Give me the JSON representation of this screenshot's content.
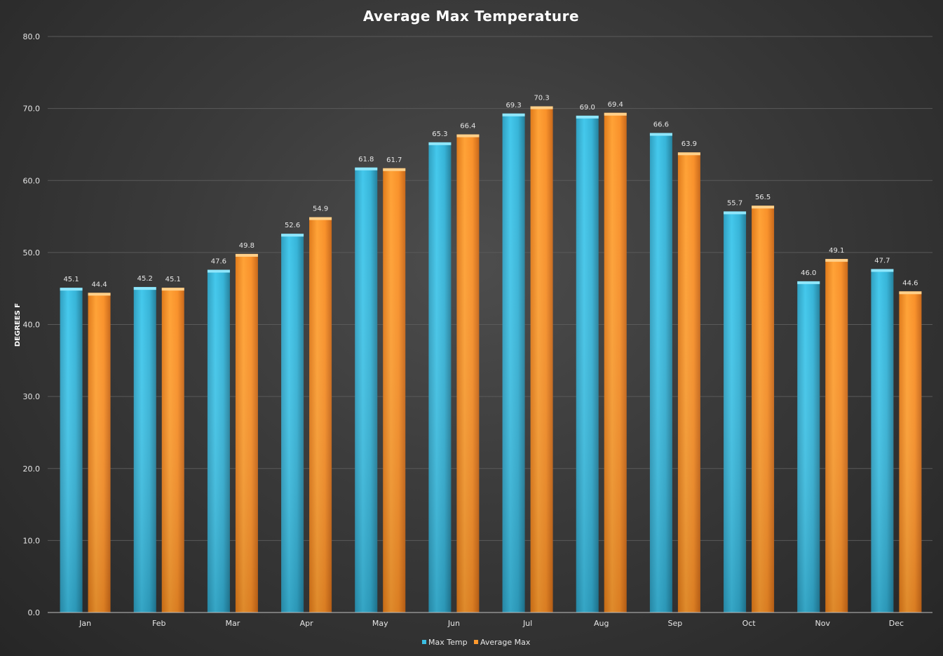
{
  "chart_data": {
    "type": "bar",
    "title": "Average Max Temperature",
    "xlabel": "",
    "ylabel": "DEGREES F",
    "ylim": [
      0,
      80
    ],
    "yticks": [
      "0.0",
      "10.0",
      "20.0",
      "30.0",
      "40.0",
      "50.0",
      "60.0",
      "70.0",
      "80.0"
    ],
    "grid": true,
    "legend": "bottom-center",
    "categories": [
      "Jan",
      "Feb",
      "Mar",
      "Apr",
      "May",
      "Jun",
      "Jul",
      "Aug",
      "Sep",
      "Oct",
      "Nov",
      "Dec"
    ],
    "series": [
      {
        "name": "Max Temp",
        "color": "#3bbfe3",
        "values": [
          45.1,
          45.2,
          47.6,
          52.6,
          61.8,
          65.3,
          69.3,
          69.0,
          66.6,
          55.7,
          46.0,
          47.7
        ],
        "labels": [
          "45.1",
          "45.2",
          "47.6",
          "52.6",
          "61.8",
          "65.3",
          "69.3",
          "69.0",
          "66.6",
          "55.7",
          "46.0",
          "47.7"
        ]
      },
      {
        "name": "Average Max",
        "color": "#ff9a2e",
        "values": [
          44.4,
          45.1,
          49.8,
          54.9,
          61.7,
          66.4,
          70.3,
          69.4,
          63.9,
          56.5,
          49.1,
          44.6
        ],
        "labels": [
          "44.4",
          "45.1",
          "49.8",
          "54.9",
          "61.7",
          "66.4",
          "70.3",
          "69.4",
          "63.9",
          "56.5",
          "49.1",
          "44.6"
        ]
      }
    ]
  }
}
